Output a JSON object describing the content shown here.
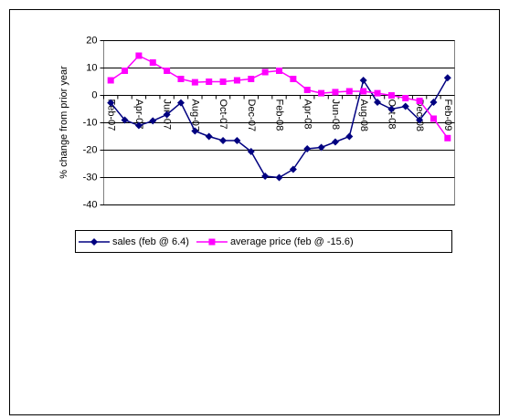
{
  "chart_data": {
    "type": "line",
    "y_label": "% change from prior year",
    "categories": [
      "Feb-07",
      null,
      "Apr-07",
      null,
      "Jun-07",
      null,
      "Aug-07",
      null,
      "Oct-07",
      null,
      "Dec-07",
      null,
      "Feb-08",
      null,
      "Apr-08",
      null,
      "Jun-08",
      null,
      "Aug-08",
      null,
      "Oct-08",
      null,
      "Dec-08",
      null,
      "Feb-09"
    ],
    "series": [
      {
        "name": "sales (feb @ 6.4)",
        "color": "#000080",
        "marker": "diamond",
        "values": [
          -2.7,
          -9,
          -11,
          -9.3,
          -7,
          -2.7,
          -13,
          -15,
          -16.5,
          -16.5,
          -20.5,
          -29.5,
          -30,
          -27,
          -19.5,
          -19,
          -17,
          -15,
          5.5,
          -2.5,
          -5,
          -4,
          -9,
          -2.5,
          6.4
        ]
      },
      {
        "name": "average price (feb @ -15.6)",
        "color": "#ff00ff",
        "marker": "square",
        "values": [
          5.5,
          9,
          14.5,
          12,
          9,
          6,
          4.8,
          5,
          5,
          5.5,
          6,
          8.5,
          9,
          6,
          2,
          0.8,
          1.2,
          1.5,
          1.5,
          0.8,
          0,
          -1,
          -2,
          -8.5,
          -15.6
        ]
      }
    ],
    "ylim": [
      -40,
      20
    ],
    "yticks": [
      20,
      10,
      0,
      -10,
      -20,
      -30,
      -40
    ],
    "grid": true
  }
}
